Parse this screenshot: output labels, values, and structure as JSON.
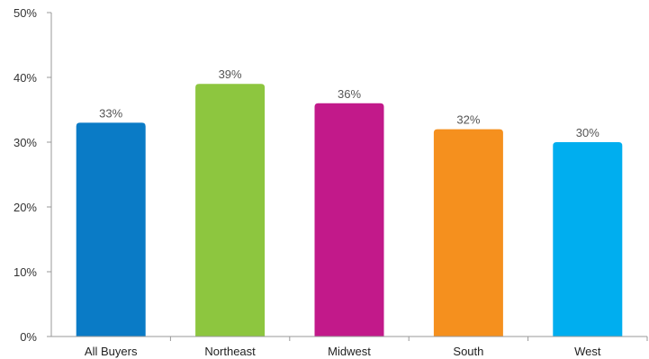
{
  "chart_data": {
    "type": "bar",
    "categories": [
      "All Buyers",
      "Northeast",
      "Midwest",
      "South",
      "West"
    ],
    "values": [
      33,
      39,
      36,
      32,
      30
    ],
    "data_labels": [
      "33%",
      "39%",
      "36%",
      "32%",
      "30%"
    ],
    "colors": [
      "#0a7bc6",
      "#8dc63f",
      "#c2198a",
      "#f5901e",
      "#00aeef"
    ],
    "ylim": [
      0,
      50
    ],
    "yticks": [
      0,
      10,
      20,
      30,
      40,
      50
    ],
    "ytick_labels": [
      "0%",
      "10%",
      "20%",
      "30%",
      "40%",
      "50%"
    ],
    "grid": false,
    "legend": "none",
    "axis_color": "#999999"
  }
}
